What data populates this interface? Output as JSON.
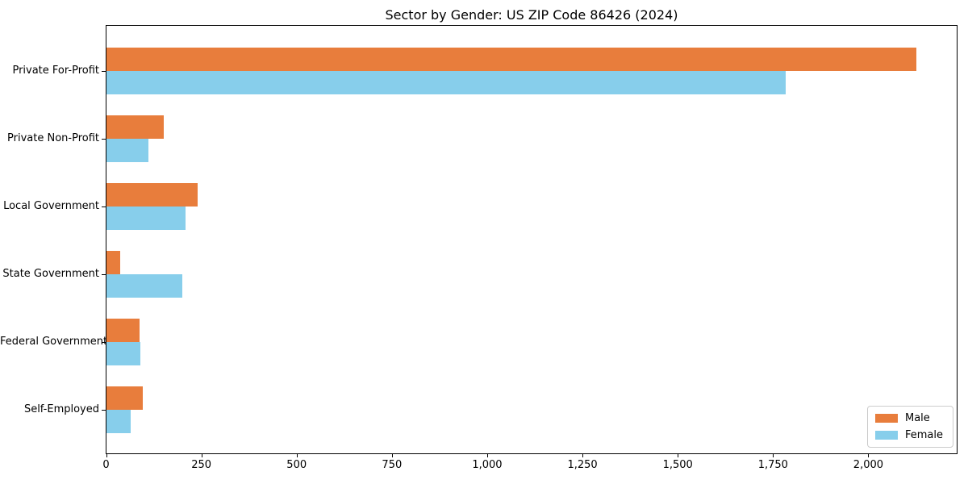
{
  "chart_data": {
    "type": "bar",
    "orientation": "horizontal",
    "title": "Sector by Gender: US ZIP Code 86426 (2024)",
    "categories": [
      "Private For-Profit",
      "Private Non-Profit",
      "Local Government",
      "State Government",
      "Federal Government",
      "Self-Employed"
    ],
    "series": [
      {
        "name": "Male",
        "color": "#e87d3c",
        "values": [
          2124,
          150,
          240,
          35,
          87,
          95
        ]
      },
      {
        "name": "Female",
        "color": "#87ceeb",
        "values": [
          1783,
          110,
          207,
          200,
          89,
          63
        ]
      }
    ],
    "xlabel": "",
    "ylabel": "",
    "xlim": [
      0,
      2233
    ],
    "x_ticks": [
      {
        "value": 0,
        "label": "0"
      },
      {
        "value": 250,
        "label": "250"
      },
      {
        "value": 500,
        "label": "500"
      },
      {
        "value": 750,
        "label": "750"
      },
      {
        "value": 1000,
        "label": "1,000"
      },
      {
        "value": 1250,
        "label": "1,250"
      },
      {
        "value": 1500,
        "label": "1,500"
      },
      {
        "value": 1750,
        "label": "1,750"
      },
      {
        "value": 2000,
        "label": "2,000"
      }
    ],
    "grid": false,
    "legend_position": "lower right",
    "axis_color": "#000000",
    "legend_border_color": "#cccccc"
  }
}
